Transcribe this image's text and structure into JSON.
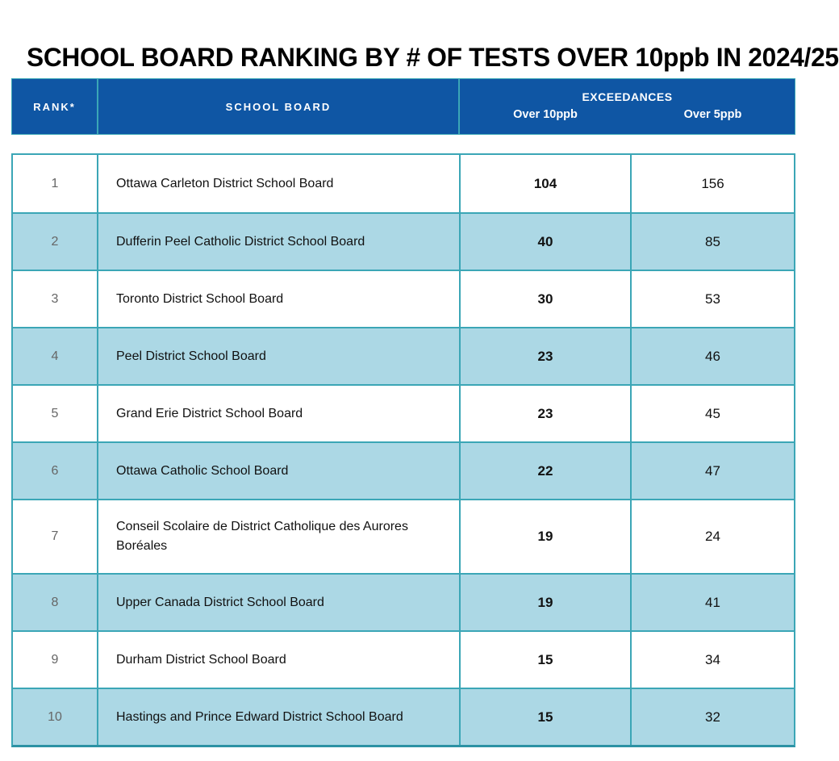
{
  "title": "SCHOOL BOARD RANKING BY # OF TESTS OVER 10ppb IN 2024/25",
  "header": {
    "rank": "RANK*",
    "school_board": "SCHOOL BOARD",
    "exceedances": "EXCEEDANCES",
    "over_10ppb": "Over 10ppb",
    "over_5ppb": "Over 5ppb"
  },
  "colors": {
    "header_bg": "#0F56A4",
    "alt_row_bg": "#ACD8E5",
    "border": "#3BA6B6",
    "border_bottom": "#2C92A4",
    "rank_text": "#666666"
  },
  "chart_data": {
    "type": "table",
    "title": "SCHOOL BOARD RANKING BY # OF TESTS OVER 10ppb IN 2024/25",
    "columns": [
      "RANK*",
      "SCHOOL BOARD",
      "EXCEEDANCES Over 10ppb",
      "EXCEEDANCES Over 5ppb"
    ],
    "rows": [
      {
        "rank": "1",
        "board": "Ottawa Carleton District School Board",
        "over10": "104",
        "over5": "156"
      },
      {
        "rank": "2",
        "board": "Dufferin Peel Catholic District School Board",
        "over10": "40",
        "over5": "85"
      },
      {
        "rank": "3",
        "board": "Toronto District School Board",
        "over10": "30",
        "over5": "53"
      },
      {
        "rank": "4",
        "board": "Peel District School Board",
        "over10": "23",
        "over5": "46"
      },
      {
        "rank": "5",
        "board": "Grand Erie District School Board",
        "over10": "23",
        "over5": "45"
      },
      {
        "rank": "6",
        "board": "Ottawa Catholic School Board",
        "over10": "22",
        "over5": "47"
      },
      {
        "rank": "7",
        "board": "Conseil Scolaire de District Catholique des Aurores Boréales",
        "over10": "19",
        "over5": "24"
      },
      {
        "rank": "8",
        "board": "Upper Canada District School Board",
        "over10": "19",
        "over5": "41"
      },
      {
        "rank": "9",
        "board": "Durham District School Board",
        "over10": "15",
        "over5": "34"
      },
      {
        "rank": "10",
        "board": "Hastings and Prince Edward District School Board",
        "over10": "15",
        "over5": "32"
      }
    ]
  }
}
